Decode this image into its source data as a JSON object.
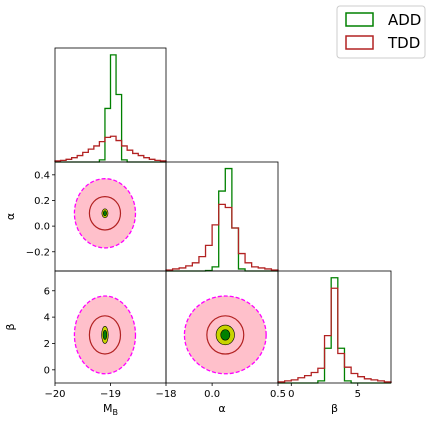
{
  "chart_data": {
    "type": "corner",
    "legend": {
      "placement": "top-right",
      "entries": [
        {
          "name": "ADD",
          "color": "#008000"
        },
        {
          "name": "TDD",
          "color": "#b22222"
        }
      ]
    },
    "colors": {
      "add": "#008000",
      "tdd": "#b22222",
      "add_inner_fill": "#008000",
      "add_outer_fill": "#c8d400",
      "tdd_inner_fill": "#ffc0cb",
      "tdd_outer_edge": "#ff00ff"
    },
    "parameters": [
      {
        "key": "MB",
        "label": "M",
        "label_sub": "B",
        "range": [
          -20,
          -18
        ],
        "ticks": [
          -20,
          -19,
          -18
        ],
        "tick_labels": [
          "−20",
          "−19",
          "−18"
        ]
      },
      {
        "key": "alpha",
        "label": "α",
        "range": [
          -0.35,
          0.5
        ],
        "ticks": [
          -0.2,
          0.0,
          0.2,
          0.4
        ],
        "tick_labels": [
          "−0.2",
          "0.0",
          "0.2",
          "0.4"
        ],
        "x_ticks": [
          0.0,
          0.5
        ],
        "x_tick_labels": [
          "0.0",
          "0.5"
        ]
      },
      {
        "key": "beta",
        "label": "β",
        "range": [
          -1,
          7.5
        ],
        "ticks": [
          0,
          2,
          4,
          6
        ],
        "tick_labels": [
          "0",
          "2",
          "4",
          "6"
        ],
        "x_ticks": [
          0,
          5
        ],
        "x_tick_labels": [
          "0",
          "5"
        ]
      }
    ],
    "histograms": [
      {
        "param": "MB",
        "bin_edges": [
          -20.0,
          -19.9,
          -19.8,
          -19.7,
          -19.6,
          -19.5,
          -19.4,
          -19.3,
          -19.2,
          -19.1,
          -19.0,
          -18.9,
          -18.8,
          -18.7,
          -18.6,
          -18.5,
          -18.4,
          -18.3,
          -18.2,
          -18.1,
          -18.0
        ],
        "series": [
          {
            "name": "ADD",
            "counts": [
              0,
              0,
              0,
              0,
              0,
              0,
              0,
              0,
              0.02,
              0.5,
              1.0,
              0.63,
              0.02,
              0,
              0,
              0,
              0,
              0,
              0,
              0
            ]
          },
          {
            "name": "TDD",
            "counts": [
              0.01,
              0.015,
              0.025,
              0.04,
              0.06,
              0.09,
              0.12,
              0.15,
              0.19,
              0.23,
              0.24,
              0.2,
              0.15,
              0.11,
              0.08,
              0.06,
              0.04,
              0.025,
              0.015,
              0.01
            ]
          }
        ]
      },
      {
        "param": "alpha",
        "bin_edges": [
          -0.35,
          -0.3,
          -0.25,
          -0.2,
          -0.15,
          -0.1,
          -0.05,
          0.0,
          0.05,
          0.1,
          0.15,
          0.2,
          0.25,
          0.3,
          0.35,
          0.4,
          0.45,
          0.5
        ],
        "series": [
          {
            "name": "ADD",
            "counts": [
              0,
              0,
              0,
              0,
              0,
              0,
              0.005,
              0.04,
              0.78,
              1.0,
              0.42,
              0.02,
              0,
              0,
              0,
              0,
              0
            ]
          },
          {
            "name": "TDD",
            "counts": [
              0.01,
              0.02,
              0.03,
              0.05,
              0.08,
              0.14,
              0.25,
              0.45,
              0.65,
              0.62,
              0.42,
              0.17,
              0.08,
              0.04,
              0.03,
              0.02,
              0.01
            ]
          }
        ]
      },
      {
        "param": "beta",
        "bin_edges": [
          -1.0,
          -0.5,
          0.0,
          0.5,
          1.0,
          1.5,
          2.0,
          2.5,
          3.0,
          3.5,
          4.0,
          4.5,
          5.0,
          5.5,
          6.0,
          6.5,
          7.0,
          7.5
        ],
        "series": [
          {
            "name": "ADD",
            "counts": [
              0,
              0,
              0,
              0,
              0,
              0,
              0.02,
              0.33,
              1.0,
              0.33,
              0.02,
              0,
              0,
              0,
              0,
              0,
              0
            ]
          },
          {
            "name": "TDD",
            "counts": [
              0.01,
              0.02,
              0.03,
              0.05,
              0.07,
              0.1,
              0.14,
              0.45,
              0.9,
              0.28,
              0.15,
              0.09,
              0.06,
              0.04,
              0.03,
              0.02,
              0.01
            ]
          }
        ]
      }
    ],
    "contours": [
      {
        "x": "MB",
        "y": "alpha",
        "TDD": {
          "center": [
            -19.1,
            0.1
          ],
          "inner_half_width": [
            0.28,
            0.13
          ],
          "outer_half_width": [
            0.55,
            0.27
          ]
        },
        "ADD": {
          "center": [
            -19.1,
            0.1
          ],
          "inner_half_width": [
            0.03,
            0.02
          ],
          "outer_half_width": [
            0.055,
            0.035
          ]
        }
      },
      {
        "x": "MB",
        "y": "beta",
        "TDD": {
          "center": [
            -19.1,
            2.65
          ],
          "inner_half_width": [
            0.28,
            1.45
          ],
          "outer_half_width": [
            0.55,
            2.95
          ]
        },
        "ADD": {
          "center": [
            -19.1,
            2.65
          ],
          "inner_half_width": [
            0.035,
            0.35
          ],
          "outer_half_width": [
            0.06,
            0.65
          ]
        }
      },
      {
        "x": "alpha",
        "y": "beta",
        "TDD": {
          "center": [
            0.1,
            2.65
          ],
          "inner_half_width": [
            0.14,
            1.45
          ],
          "outer_half_width": [
            0.31,
            2.95
          ]
        },
        "ADD": {
          "center": [
            0.1,
            2.65
          ],
          "inner_half_width": [
            0.035,
            0.4
          ],
          "outer_half_width": [
            0.07,
            0.75
          ]
        }
      }
    ]
  }
}
